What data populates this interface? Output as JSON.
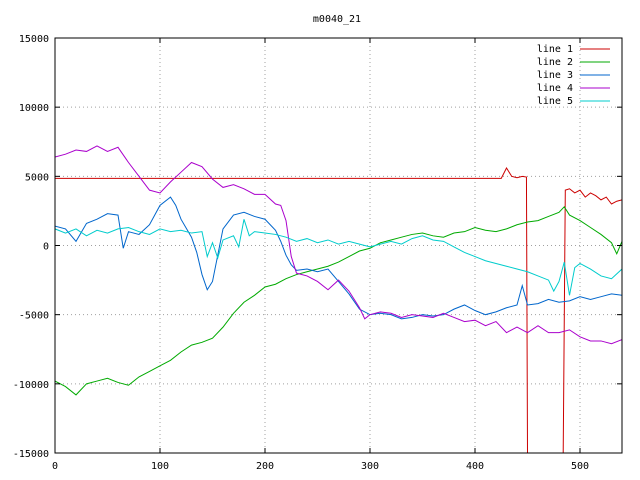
{
  "chart_data": {
    "type": "line",
    "title": "m0040_21",
    "xlabel": "",
    "ylabel": "",
    "xlim": [
      0,
      540
    ],
    "ylim": [
      -15000,
      15000
    ],
    "x_ticks": [
      0,
      100,
      200,
      300,
      400,
      500
    ],
    "y_ticks": [
      -15000,
      -10000,
      -5000,
      0,
      5000,
      10000,
      15000
    ],
    "x_tick_labels": [
      "0",
      "100",
      "200",
      "300",
      "400",
      "500"
    ],
    "y_tick_labels": [
      "-15000",
      "-10000",
      "-5000",
      "0",
      "5000",
      "10000",
      "15000"
    ],
    "grid": true,
    "legend_position": "top-right",
    "series": [
      {
        "name": "line 1",
        "color": "#cc0000",
        "points": [
          [
            0,
            4850
          ],
          [
            425,
            4850
          ],
          [
            430,
            5600
          ],
          [
            435,
            5000
          ],
          [
            440,
            4900
          ],
          [
            445,
            5000
          ],
          [
            449,
            4950
          ],
          [
            450,
            -15000
          ],
          [
            484,
            -15000
          ],
          [
            486,
            4000
          ],
          [
            490,
            4100
          ],
          [
            495,
            3800
          ],
          [
            500,
            4000
          ],
          [
            505,
            3500
          ],
          [
            510,
            3800
          ],
          [
            515,
            3600
          ],
          [
            520,
            3300
          ],
          [
            525,
            3500
          ],
          [
            530,
            3000
          ],
          [
            535,
            3200
          ],
          [
            540,
            3300
          ]
        ]
      },
      {
        "name": "line 2",
        "color": "#00aa00",
        "points": [
          [
            0,
            -9800
          ],
          [
            10,
            -10200
          ],
          [
            20,
            -10800
          ],
          [
            30,
            -10000
          ],
          [
            40,
            -9800
          ],
          [
            50,
            -9600
          ],
          [
            60,
            -9900
          ],
          [
            70,
            -10100
          ],
          [
            80,
            -9500
          ],
          [
            90,
            -9100
          ],
          [
            100,
            -8700
          ],
          [
            110,
            -8300
          ],
          [
            120,
            -7700
          ],
          [
            130,
            -7200
          ],
          [
            140,
            -7000
          ],
          [
            150,
            -6700
          ],
          [
            160,
            -5900
          ],
          [
            170,
            -4900
          ],
          [
            180,
            -4100
          ],
          [
            190,
            -3600
          ],
          [
            200,
            -3000
          ],
          [
            210,
            -2800
          ],
          [
            220,
            -2400
          ],
          [
            230,
            -2100
          ],
          [
            240,
            -1900
          ],
          [
            250,
            -1700
          ],
          [
            260,
            -1500
          ],
          [
            270,
            -1200
          ],
          [
            280,
            -800
          ],
          [
            290,
            -400
          ],
          [
            300,
            -200
          ],
          [
            310,
            200
          ],
          [
            320,
            400
          ],
          [
            330,
            600
          ],
          [
            340,
            800
          ],
          [
            350,
            900
          ],
          [
            360,
            700
          ],
          [
            370,
            600
          ],
          [
            380,
            900
          ],
          [
            390,
            1000
          ],
          [
            400,
            1300
          ],
          [
            410,
            1100
          ],
          [
            420,
            1000
          ],
          [
            430,
            1200
          ],
          [
            440,
            1500
          ],
          [
            450,
            1700
          ],
          [
            460,
            1800
          ],
          [
            470,
            2100
          ],
          [
            480,
            2400
          ],
          [
            485,
            2800
          ],
          [
            490,
            2200
          ],
          [
            500,
            1800
          ],
          [
            510,
            1300
          ],
          [
            520,
            800
          ],
          [
            530,
            200
          ],
          [
            535,
            -600
          ],
          [
            540,
            300
          ]
        ]
      },
      {
        "name": "line 3",
        "color": "#0066cc",
        "points": [
          [
            0,
            1400
          ],
          [
            10,
            1200
          ],
          [
            20,
            300
          ],
          [
            30,
            1600
          ],
          [
            40,
            1900
          ],
          [
            50,
            2300
          ],
          [
            60,
            2200
          ],
          [
            65,
            -200
          ],
          [
            70,
            1000
          ],
          [
            80,
            800
          ],
          [
            90,
            1500
          ],
          [
            100,
            2900
          ],
          [
            110,
            3500
          ],
          [
            115,
            2900
          ],
          [
            120,
            1900
          ],
          [
            130,
            600
          ],
          [
            135,
            -500
          ],
          [
            140,
            -2100
          ],
          [
            145,
            -3200
          ],
          [
            150,
            -2600
          ],
          [
            155,
            -700
          ],
          [
            160,
            1200
          ],
          [
            170,
            2200
          ],
          [
            180,
            2400
          ],
          [
            190,
            2100
          ],
          [
            200,
            1900
          ],
          [
            210,
            1100
          ],
          [
            215,
            300
          ],
          [
            220,
            -700
          ],
          [
            225,
            -1400
          ],
          [
            230,
            -1800
          ],
          [
            240,
            -1700
          ],
          [
            250,
            -1900
          ],
          [
            260,
            -1700
          ],
          [
            270,
            -2600
          ],
          [
            280,
            -3500
          ],
          [
            290,
            -4600
          ],
          [
            300,
            -5000
          ],
          [
            310,
            -4900
          ],
          [
            320,
            -5000
          ],
          [
            330,
            -5300
          ],
          [
            340,
            -5200
          ],
          [
            350,
            -5000
          ],
          [
            360,
            -5100
          ],
          [
            370,
            -5000
          ],
          [
            380,
            -4600
          ],
          [
            390,
            -4300
          ],
          [
            400,
            -4700
          ],
          [
            410,
            -5000
          ],
          [
            420,
            -4800
          ],
          [
            430,
            -4500
          ],
          [
            440,
            -4300
          ],
          [
            445,
            -2900
          ],
          [
            450,
            -4300
          ],
          [
            460,
            -4200
          ],
          [
            470,
            -3900
          ],
          [
            480,
            -4100
          ],
          [
            490,
            -4000
          ],
          [
            500,
            -3700
          ],
          [
            510,
            -3900
          ],
          [
            520,
            -3700
          ],
          [
            530,
            -3500
          ],
          [
            540,
            -3600
          ]
        ]
      },
      {
        "name": "line 4",
        "color": "#aa00cc",
        "points": [
          [
            0,
            6400
          ],
          [
            10,
            6600
          ],
          [
            20,
            6900
          ],
          [
            30,
            6800
          ],
          [
            40,
            7200
          ],
          [
            50,
            6800
          ],
          [
            60,
            7100
          ],
          [
            70,
            6000
          ],
          [
            80,
            5000
          ],
          [
            90,
            4000
          ],
          [
            100,
            3800
          ],
          [
            110,
            4600
          ],
          [
            120,
            5300
          ],
          [
            130,
            6000
          ],
          [
            140,
            5700
          ],
          [
            150,
            4800
          ],
          [
            160,
            4200
          ],
          [
            170,
            4400
          ],
          [
            180,
            4100
          ],
          [
            190,
            3700
          ],
          [
            200,
            3700
          ],
          [
            210,
            3000
          ],
          [
            215,
            2900
          ],
          [
            220,
            1800
          ],
          [
            225,
            -800
          ],
          [
            230,
            -2000
          ],
          [
            240,
            -2200
          ],
          [
            250,
            -2600
          ],
          [
            260,
            -3200
          ],
          [
            270,
            -2500
          ],
          [
            280,
            -3300
          ],
          [
            290,
            -4500
          ],
          [
            295,
            -5300
          ],
          [
            300,
            -5000
          ],
          [
            310,
            -4800
          ],
          [
            320,
            -4900
          ],
          [
            330,
            -5200
          ],
          [
            340,
            -5000
          ],
          [
            350,
            -5100
          ],
          [
            360,
            -5200
          ],
          [
            370,
            -4900
          ],
          [
            380,
            -5200
          ],
          [
            390,
            -5500
          ],
          [
            400,
            -5400
          ],
          [
            410,
            -5800
          ],
          [
            420,
            -5500
          ],
          [
            430,
            -6300
          ],
          [
            440,
            -5900
          ],
          [
            450,
            -6300
          ],
          [
            460,
            -5800
          ],
          [
            470,
            -6300
          ],
          [
            480,
            -6300
          ],
          [
            490,
            -6100
          ],
          [
            500,
            -6600
          ],
          [
            510,
            -6900
          ],
          [
            520,
            -6900
          ],
          [
            530,
            -7100
          ],
          [
            540,
            -6800
          ]
        ]
      },
      {
        "name": "line 5",
        "color": "#00cccc",
        "points": [
          [
            0,
            1200
          ],
          [
            10,
            900
          ],
          [
            20,
            1200
          ],
          [
            30,
            700
          ],
          [
            40,
            1100
          ],
          [
            50,
            900
          ],
          [
            60,
            1200
          ],
          [
            70,
            1300
          ],
          [
            80,
            1000
          ],
          [
            90,
            800
          ],
          [
            100,
            1200
          ],
          [
            110,
            1000
          ],
          [
            120,
            1100
          ],
          [
            130,
            900
          ],
          [
            140,
            1000
          ],
          [
            145,
            -800
          ],
          [
            150,
            200
          ],
          [
            155,
            -900
          ],
          [
            160,
            400
          ],
          [
            170,
            700
          ],
          [
            175,
            -100
          ],
          [
            180,
            1900
          ],
          [
            185,
            700
          ],
          [
            190,
            1000
          ],
          [
            200,
            900
          ],
          [
            210,
            800
          ],
          [
            220,
            600
          ],
          [
            230,
            300
          ],
          [
            240,
            500
          ],
          [
            250,
            200
          ],
          [
            260,
            400
          ],
          [
            270,
            100
          ],
          [
            280,
            300
          ],
          [
            290,
            100
          ],
          [
            300,
            -100
          ],
          [
            310,
            100
          ],
          [
            320,
            300
          ],
          [
            330,
            100
          ],
          [
            340,
            500
          ],
          [
            350,
            700
          ],
          [
            360,
            400
          ],
          [
            370,
            300
          ],
          [
            380,
            -100
          ],
          [
            390,
            -500
          ],
          [
            400,
            -800
          ],
          [
            410,
            -1100
          ],
          [
            420,
            -1300
          ],
          [
            430,
            -1500
          ],
          [
            440,
            -1700
          ],
          [
            450,
            -1900
          ],
          [
            460,
            -2200
          ],
          [
            470,
            -2500
          ],
          [
            475,
            -3300
          ],
          [
            480,
            -2600
          ],
          [
            485,
            -1200
          ],
          [
            490,
            -3600
          ],
          [
            495,
            -1600
          ],
          [
            500,
            -1300
          ],
          [
            510,
            -1700
          ],
          [
            520,
            -2200
          ],
          [
            530,
            -2400
          ],
          [
            540,
            -1700
          ]
        ]
      }
    ]
  }
}
